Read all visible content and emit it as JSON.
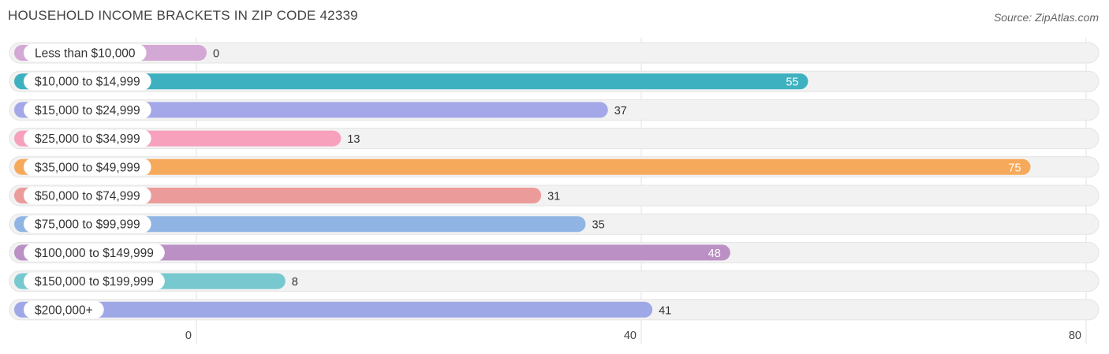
{
  "title": "HOUSEHOLD INCOME BRACKETS IN ZIP CODE 42339",
  "source": "Source: ZipAtlas.com",
  "chart_data": {
    "type": "bar",
    "orientation": "horizontal",
    "title": "HOUSEHOLD INCOME BRACKETS IN ZIP CODE 42339",
    "xlabel": "",
    "ylabel": "",
    "xlim": [
      0,
      80
    ],
    "xticks": [
      0,
      40,
      80
    ],
    "grid": true,
    "categories": [
      "Less than $10,000",
      "$10,000 to $14,999",
      "$15,000 to $24,999",
      "$25,000 to $34,999",
      "$35,000 to $49,999",
      "$50,000 to $74,999",
      "$75,000 to $99,999",
      "$100,000 to $149,999",
      "$150,000 to $199,999",
      "$200,000+"
    ],
    "values": [
      0,
      55,
      37,
      13,
      75,
      31,
      35,
      48,
      8,
      41
    ],
    "colors": [
      "#d4a8d4",
      "#3eb1c0",
      "#a4a8e8",
      "#f7a1bd",
      "#f7a95b",
      "#eb9c9a",
      "#90b5e5",
      "#bb90c4",
      "#77c8cf",
      "#9fa8e6"
    ],
    "value_label_inside": [
      false,
      true,
      false,
      false,
      true,
      false,
      false,
      true,
      false,
      false
    ]
  }
}
